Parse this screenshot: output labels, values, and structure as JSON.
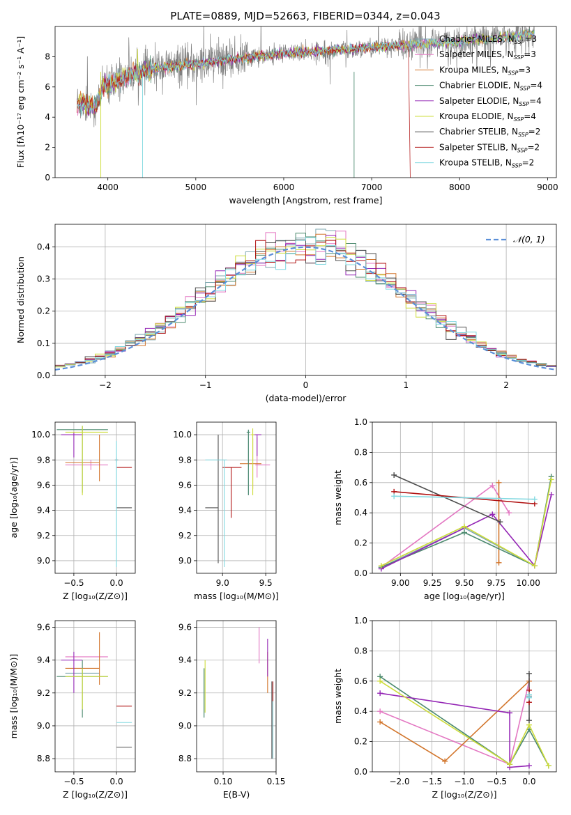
{
  "figure_title": "PLATE=0889, MJD=52663, FIBERID=0344, z=0.043",
  "models": [
    {
      "name": "Chabrier MILES",
      "nssp": "3",
      "color": "#7fa8b0"
    },
    {
      "name": "Salpeter MILES",
      "nssp": "3",
      "color": "#e377c2"
    },
    {
      "name": "Kroupa MILES",
      "nssp": "3",
      "color": "#d2752b"
    },
    {
      "name": "Chabrier ELODIE",
      "nssp": "4",
      "color": "#4c8a6f"
    },
    {
      "name": "Salpeter ELODIE",
      "nssp": "4",
      "color": "#9426b5"
    },
    {
      "name": "Kroupa ELODIE",
      "nssp": "4",
      "color": "#cddc39"
    },
    {
      "name": "Chabrier STELIB",
      "nssp": "2",
      "color": "#4d4d4d"
    },
    {
      "name": "Salpeter STELIB",
      "nssp": "2",
      "color": "#b01010"
    },
    {
      "name": "Kroupa STELIB",
      "nssp": "2",
      "color": "#80d8e0"
    }
  ],
  "nssp_prefix": "N",
  "nssp_sub": "SSP",
  "chart_data": [
    {
      "id": "spectrum",
      "type": "line",
      "xlabel": "wavelength [Angstrom, rest frame]",
      "ylabel": "Flux [fλ10⁻¹⁷ erg cm⁻² s⁻¹ A⁻¹]",
      "xlim": [
        3400,
        9100
      ],
      "ylim": [
        0,
        10
      ],
      "xticks": [
        4000,
        5000,
        6000,
        7000,
        8000,
        9000
      ],
      "yticks": [
        0,
        2,
        4,
        6,
        8
      ],
      "grid": false,
      "legend": "right",
      "data_color": "#808080",
      "data_x_range": [
        3650,
        8850
      ],
      "continuum": [
        [
          3650,
          5.0
        ],
        [
          3850,
          4.6
        ],
        [
          3950,
          6.0
        ],
        [
          4300,
          6.9
        ],
        [
          4600,
          7.3
        ],
        [
          5000,
          7.5
        ],
        [
          5500,
          7.9
        ],
        [
          6000,
          8.2
        ],
        [
          6500,
          8.4
        ],
        [
          7000,
          8.6
        ],
        [
          7500,
          8.8
        ],
        [
          8000,
          9.0
        ],
        [
          8500,
          9.3
        ],
        [
          8850,
          9.5
        ]
      ]
    },
    {
      "id": "residuals",
      "type": "histogram",
      "xlabel": "(data-model)/error",
      "ylabel": "Normed distribution",
      "xlim": [
        -2.5,
        2.5
      ],
      "ylim": [
        0,
        0.47
      ],
      "xticks": [
        -2,
        -1,
        0,
        1,
        2
      ],
      "yticks": [
        0.0,
        0.1,
        0.2,
        0.3,
        0.4
      ],
      "grid": true,
      "legend": "top-right",
      "gaussian_label": "𝒩(0, 1)",
      "gaussian_color": "#5b8fd8",
      "bin_width": 0.1
    },
    {
      "id": "age-vs-Z",
      "type": "scatter",
      "xlabel": "Z [log₁₀(Z/Z⊙)]",
      "ylabel": "age  [log₁₀(age/yr)]",
      "xlim": [
        -0.72,
        0.22
      ],
      "ylim": [
        8.9,
        10.1
      ],
      "xticks": [
        -0.5,
        0.0
      ],
      "yticks": [
        9.0,
        9.2,
        9.4,
        9.6,
        9.8,
        10.0
      ],
      "grid": true,
      "points": [
        {
          "m": 0,
          "x": 0.0,
          "y": 9.8,
          "ex": [
            0.02,
            0.02
          ],
          "ey": [
            0.02,
            0.02
          ]
        },
        {
          "m": 1,
          "x": -0.3,
          "y": 9.76,
          "ex": [
            0.3,
            0.2
          ],
          "ey": [
            0.04,
            0.04
          ]
        },
        {
          "m": 2,
          "x": -0.2,
          "y": 9.78,
          "ex": [
            0.4,
            0.0
          ],
          "ey": [
            0.15,
            0.22
          ]
        },
        {
          "m": 3,
          "x": -0.4,
          "y": 10.04,
          "ex": [
            0.3,
            0.3
          ],
          "ey": [
            0.5,
            0.03
          ]
        },
        {
          "m": 4,
          "x": -0.5,
          "y": 10.0,
          "ex": [
            0.15,
            0.1
          ],
          "ey": [
            0.18,
            0.02
          ]
        },
        {
          "m": 5,
          "x": -0.4,
          "y": 10.02,
          "ex": [
            0.2,
            0.3
          ],
          "ey": [
            0.5,
            0.05
          ]
        },
        {
          "m": 6,
          "x": 0.0,
          "y": 9.42,
          "ex": [
            0.0,
            0.18
          ],
          "ey": [
            0.0,
            0.0
          ]
        },
        {
          "m": 7,
          "x": 0.0,
          "y": 9.74,
          "ex": [
            0.0,
            0.18
          ],
          "ey": [
            0.0,
            0.0
          ]
        },
        {
          "m": 8,
          "x": 0.0,
          "y": 9.6,
          "ex": [
            0.0,
            0.0
          ],
          "ey": [
            0.65,
            0.35
          ]
        }
      ]
    },
    {
      "id": "age-vs-mass",
      "type": "scatter",
      "xlabel": "mass [log₁₀(M/M⊙)]",
      "ylabel": "",
      "xlim": [
        8.7,
        9.62
      ],
      "ylim": [
        8.9,
        10.1
      ],
      "xticks": [
        9.0,
        9.5
      ],
      "yticks": [
        9.0,
        9.2,
        9.4,
        9.6,
        9.8,
        10.0
      ],
      "grid": true,
      "points": [
        {
          "m": 0,
          "x": 9.3,
          "y": 10.02,
          "ex": [
            0.02,
            0.02
          ],
          "ey": [
            0.5,
            0.02
          ]
        },
        {
          "m": 1,
          "x": 9.4,
          "y": 9.76,
          "ex": [
            0.02,
            0.15
          ],
          "ey": [
            0.1,
            0.22
          ]
        },
        {
          "m": 2,
          "x": 9.35,
          "y": 9.77,
          "ex": [
            0.15,
            0.1
          ],
          "ey": [
            0.2,
            0.2
          ]
        },
        {
          "m": 3,
          "x": 9.3,
          "y": 10.02,
          "ex": [
            0.02,
            0.02
          ],
          "ey": [
            0.5,
            0.02
          ]
        },
        {
          "m": 4,
          "x": 9.4,
          "y": 10.0,
          "ex": [
            0.05,
            0.05
          ],
          "ey": [
            0.17,
            0.0
          ]
        },
        {
          "m": 5,
          "x": 9.35,
          "y": 10.0,
          "ex": [
            0.02,
            0.02
          ],
          "ey": [
            0.48,
            0.05
          ]
        },
        {
          "m": 6,
          "x": 8.95,
          "y": 9.42,
          "ex": [
            0.15,
            0.0
          ],
          "ey": [
            0.44,
            0.58
          ]
        },
        {
          "m": 7,
          "x": 9.1,
          "y": 9.74,
          "ex": [
            0.1,
            0.12
          ],
          "ey": [
            0.4,
            0.0
          ]
        },
        {
          "m": 8,
          "x": 9.02,
          "y": 9.8,
          "ex": [
            0.22,
            0.03
          ],
          "ey": [
            0.85,
            0.0
          ]
        }
      ]
    },
    {
      "id": "weight-vs-age",
      "type": "line",
      "xlabel": "age  [log₁₀(age/yr)]",
      "ylabel": "mass weight",
      "xlim": [
        8.78,
        10.22
      ],
      "ylim": [
        0,
        1
      ],
      "xticks": [
        9.0,
        9.25,
        9.5,
        9.75,
        10.0
      ],
      "yticks": [
        0.0,
        0.2,
        0.4,
        0.6,
        0.8,
        1.0
      ],
      "grid": true,
      "series": [
        {
          "m": 0,
          "x": [
            8.85,
            9.5,
            10.05
          ],
          "y": [
            0.04,
            0.3,
            0.05
          ]
        },
        {
          "m": 1,
          "x": [
            8.85,
            9.72,
            9.85
          ],
          "y": [
            0.04,
            0.58,
            0.4
          ]
        },
        {
          "m": 2,
          "x": [
            9.77,
            9.77
          ],
          "y": [
            0.07,
            0.6
          ]
        },
        {
          "m": 3,
          "x": [
            8.85,
            9.5,
            10.05,
            10.18
          ],
          "y": [
            0.04,
            0.27,
            0.05,
            0.64
          ]
        },
        {
          "m": 4,
          "x": [
            8.85,
            9.72,
            10.05,
            10.18
          ],
          "y": [
            0.03,
            0.39,
            0.05,
            0.52
          ]
        },
        {
          "m": 5,
          "x": [
            8.85,
            9.5,
            10.05,
            10.18
          ],
          "y": [
            0.05,
            0.31,
            0.05,
            0.62
          ]
        },
        {
          "m": 6,
          "x": [
            8.95,
            9.78
          ],
          "y": [
            0.65,
            0.34
          ]
        },
        {
          "m": 7,
          "x": [
            8.95,
            10.05
          ],
          "y": [
            0.54,
            0.46
          ]
        },
        {
          "m": 8,
          "x": [
            8.95,
            10.05
          ],
          "y": [
            0.51,
            0.49
          ]
        }
      ]
    },
    {
      "id": "mass-vs-Z",
      "type": "scatter",
      "xlabel": "Z [log₁₀(Z/Z⊙)]",
      "ylabel": "mass [log₁₀(M/M⊙)]",
      "xlim": [
        -0.72,
        0.22
      ],
      "ylim": [
        8.72,
        9.64
      ],
      "xticks": [
        -0.5,
        0.0
      ],
      "yticks": [
        8.8,
        9.0,
        9.2,
        9.4,
        9.6
      ],
      "grid": true,
      "points": [
        {
          "m": 0,
          "x": -0.4,
          "y": 9.32,
          "ex": [
            0.2,
            0.2
          ],
          "ey": [
            0.02,
            0.02
          ]
        },
        {
          "m": 1,
          "x": -0.3,
          "y": 9.42,
          "ex": [
            0.3,
            0.2
          ],
          "ey": [
            0.0,
            0.0
          ]
        },
        {
          "m": 2,
          "x": -0.2,
          "y": 9.35,
          "ex": [
            0.4,
            0.0
          ],
          "ey": [
            0.1,
            0.22
          ]
        },
        {
          "m": 3,
          "x": -0.4,
          "y": 9.3,
          "ex": [
            0.3,
            0.3
          ],
          "ey": [
            0.25,
            0.1
          ]
        },
        {
          "m": 4,
          "x": -0.5,
          "y": 9.4,
          "ex": [
            0.15,
            0.1
          ],
          "ey": [
            0.2,
            0.05
          ]
        },
        {
          "m": 5,
          "x": -0.4,
          "y": 9.3,
          "ex": [
            0.2,
            0.3
          ],
          "ey": [
            0.2,
            0.05
          ]
        },
        {
          "m": 6,
          "x": 0.0,
          "y": 8.87,
          "ex": [
            0.0,
            0.18
          ],
          "ey": [
            0.0,
            0.0
          ]
        },
        {
          "m": 7,
          "x": 0.0,
          "y": 9.12,
          "ex": [
            0.0,
            0.18
          ],
          "ey": [
            0.0,
            0.0
          ]
        },
        {
          "m": 8,
          "x": 0.0,
          "y": 9.02,
          "ex": [
            0.0,
            0.18
          ],
          "ey": [
            0.0,
            0.0
          ]
        }
      ]
    },
    {
      "id": "mass-vs-EBV",
      "type": "scatter",
      "xlabel": "E(B-V)",
      "ylabel": "",
      "xlim": [
        0.075,
        0.15
      ],
      "ylim": [
        8.72,
        9.64
      ],
      "xticks": [
        0.1,
        0.15
      ],
      "yticks": [
        8.8,
        9.0,
        9.2,
        9.4,
        9.6
      ],
      "grid": true,
      "points": [
        {
          "m": 0,
          "x": 0.082,
          "y": 9.3,
          "ex": [
            0.0,
            0.0
          ],
          "ey": [
            0.25,
            0.05
          ]
        },
        {
          "m": 1,
          "x": 0.134,
          "y": 9.48,
          "ex": [
            0.0,
            0.0
          ],
          "ey": [
            0.1,
            0.12
          ]
        },
        {
          "m": 2,
          "x": 0.142,
          "y": 9.35,
          "ex": [
            0.0,
            0.0
          ],
          "ey": [
            0.15,
            0.1
          ]
        },
        {
          "m": 3,
          "x": 0.082,
          "y": 9.3,
          "ex": [
            0.0,
            0.0
          ],
          "ey": [
            0.25,
            0.05
          ]
        },
        {
          "m": 4,
          "x": 0.142,
          "y": 9.45,
          "ex": [
            0.0,
            0.0
          ],
          "ey": [
            0.15,
            0.08
          ]
        },
        {
          "m": 5,
          "x": 0.083,
          "y": 9.28,
          "ex": [
            0.0,
            0.0
          ],
          "ey": [
            0.2,
            0.12
          ]
        },
        {
          "m": 6,
          "x": 0.146,
          "y": 9.0,
          "ex": [
            0.0,
            0.0
          ],
          "ey": [
            0.2,
            0.27
          ]
        },
        {
          "m": 7,
          "x": 0.147,
          "y": 9.1,
          "ex": [
            0.0,
            0.0
          ],
          "ey": [
            0.3,
            0.17
          ]
        },
        {
          "m": 8,
          "x": 0.147,
          "y": 9.0,
          "ex": [
            0.0,
            0.0
          ],
          "ey": [
            0.2,
            0.15
          ]
        }
      ]
    },
    {
      "id": "weight-vs-Z",
      "type": "line",
      "xlabel": "Z [log₁₀(Z/Z⊙)]",
      "ylabel": "mass weight",
      "xlim": [
        -2.42,
        0.42
      ],
      "ylim": [
        0,
        1
      ],
      "xticks": [
        -2.0,
        -1.5,
        -1.0,
        -0.5,
        0.0
      ],
      "yticks": [
        0.0,
        0.2,
        0.4,
        0.6,
        0.8,
        1.0
      ],
      "grid": true,
      "series": [
        {
          "m": 0,
          "x": [
            0.0,
            0.0
          ],
          "y": [
            0.5,
            0.5
          ]
        },
        {
          "m": 1,
          "x": [
            -2.3,
            -0.3,
            0.0
          ],
          "y": [
            0.4,
            0.05,
            0.6
          ]
        },
        {
          "m": 2,
          "x": [
            -2.3,
            -1.3,
            0.0
          ],
          "y": [
            0.33,
            0.07,
            0.6
          ]
        },
        {
          "m": 3,
          "x": [
            -2.3,
            -0.3,
            0.0,
            0.3
          ],
          "y": [
            0.63,
            0.05,
            0.28,
            0.04
          ]
        },
        {
          "m": 4,
          "x": [
            -2.3,
            -0.3,
            -0.3,
            0.0
          ],
          "y": [
            0.52,
            0.39,
            0.03,
            0.04
          ]
        },
        {
          "m": 5,
          "x": [
            -2.3,
            -0.3,
            0.0,
            0.3
          ],
          "y": [
            0.6,
            0.05,
            0.31,
            0.04
          ]
        },
        {
          "m": 6,
          "x": [
            0.0,
            0.0
          ],
          "y": [
            0.34,
            0.65
          ]
        },
        {
          "m": 7,
          "x": [
            0.0,
            0.0
          ],
          "y": [
            0.46,
            0.54
          ]
        },
        {
          "m": 8,
          "x": [
            0.0,
            0.0
          ],
          "y": [
            0.49,
            0.51
          ]
        }
      ]
    }
  ]
}
